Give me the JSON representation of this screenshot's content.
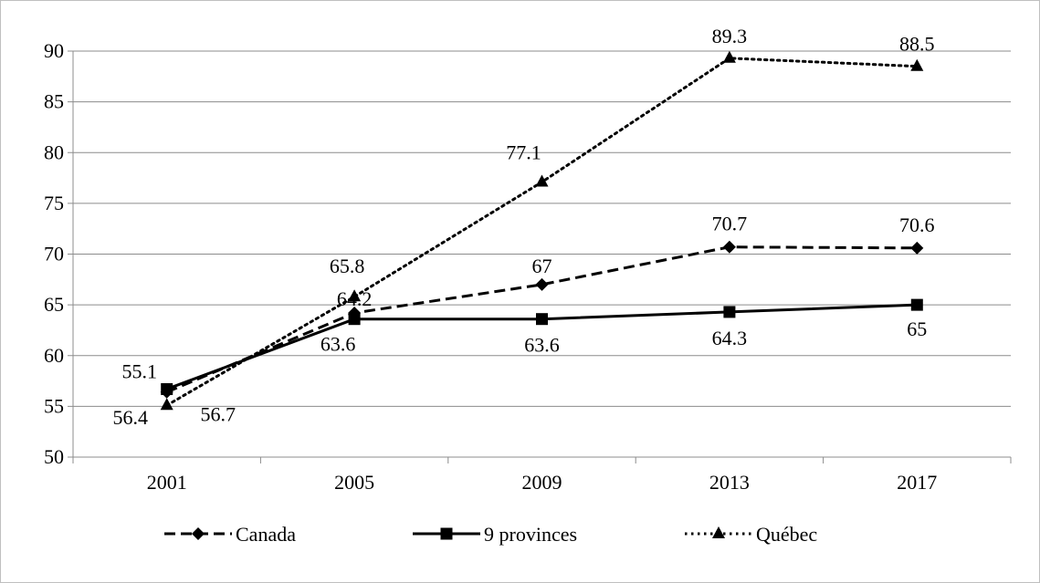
{
  "chart_data": {
    "type": "line",
    "title": "",
    "xlabel": "",
    "ylabel": "",
    "categories": [
      "2001",
      "2005",
      "2009",
      "2013",
      "2017"
    ],
    "ylim": [
      50,
      90
    ],
    "yticks": [
      50,
      55,
      60,
      65,
      70,
      75,
      80,
      85,
      90
    ],
    "grid": "horizontal",
    "legend": "bottom",
    "series": [
      {
        "name": "Canada",
        "values": [
          56.4,
          64.2,
          67,
          70.7,
          70.6
        ],
        "labels": [
          "56.4",
          "64.2",
          "67",
          "70.7",
          "70.6"
        ],
        "line_style": "dashed",
        "marker": "diamond",
        "color": "#000000"
      },
      {
        "name": "9 provinces",
        "values": [
          56.7,
          63.6,
          63.6,
          64.3,
          65
        ],
        "labels": [
          "56.7",
          "63.6",
          "63.6",
          "64.3",
          "65"
        ],
        "line_style": "solid",
        "marker": "square",
        "color": "#000000"
      },
      {
        "name": "Québec",
        "values": [
          55.1,
          65.8,
          77.1,
          89.3,
          88.5
        ],
        "labels": [
          "55.1",
          "65.8",
          "77.1",
          "89.3",
          "88.5"
        ],
        "line_style": "dotted",
        "marker": "triangle",
        "color": "#000000"
      }
    ]
  }
}
